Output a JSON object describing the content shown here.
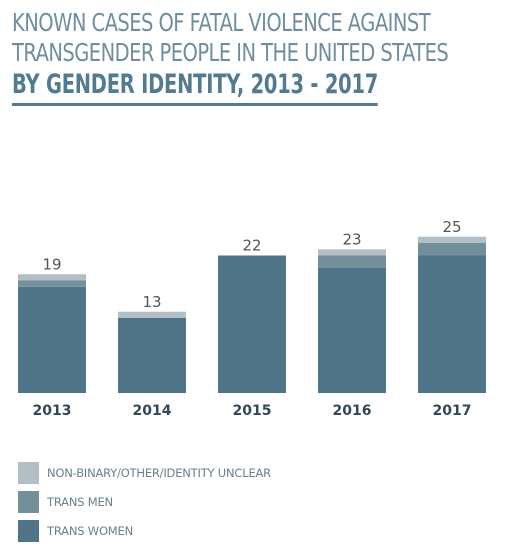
{
  "title": {
    "line1": "KNOWN CASES OF FATAL VIOLENCE AGAINST",
    "line2": "TRANSGENDER PEOPLE IN THE UNITED STATES",
    "line3": "BY GENDER IDENTITY, 2013 - 2017"
  },
  "colors": {
    "trans_women": "#4f7488",
    "trans_men": "#728f9a",
    "non_binary": "#b3bfc4",
    "label_text": "#555555",
    "axis_text": "#2f4956"
  },
  "legend": [
    {
      "label": "NON-BINARY/OTHER/IDENTITY UNCLEAR",
      "color": "#b3bfc4"
    },
    {
      "label": "TRANS MEN",
      "color": "#728f9a"
    },
    {
      "label": "TRANS WOMEN",
      "color": "#4f7488"
    }
  ],
  "chart_data": {
    "type": "bar",
    "stacked": true,
    "categories": [
      "2013",
      "2014",
      "2015",
      "2016",
      "2017"
    ],
    "totals": [
      19,
      13,
      22,
      23,
      25
    ],
    "series": [
      {
        "name": "TRANS WOMEN",
        "values": [
          17,
          12,
          22,
          20,
          22
        ]
      },
      {
        "name": "TRANS MEN",
        "values": [
          1,
          0,
          0,
          2,
          2
        ]
      },
      {
        "name": "NON-BINARY/OTHER/IDENTITY UNCLEAR",
        "values": [
          1,
          1,
          0,
          1,
          1
        ]
      }
    ],
    "title": "KNOWN CASES OF FATAL VIOLENCE AGAINST TRANSGENDER PEOPLE IN THE UNITED STATES BY GENDER IDENTITY, 2013 - 2017",
    "xlabel": "",
    "ylabel": "",
    "ylim": [
      0,
      25
    ],
    "grid": false,
    "legend_position": "bottom-left"
  }
}
